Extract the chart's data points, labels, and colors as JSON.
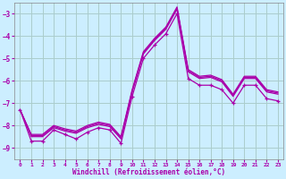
{
  "xlabel": "Windchill (Refroidissement éolien,°C)",
  "background_color": "#cceeff",
  "grid_color": "#aacccc",
  "line_color": "#aa00aa",
  "x_hours": [
    0,
    1,
    2,
    3,
    4,
    5,
    6,
    7,
    8,
    9,
    10,
    11,
    12,
    13,
    14,
    15,
    16,
    17,
    18,
    19,
    20,
    21,
    22,
    23
  ],
  "series_main": [
    -7.3,
    -8.7,
    -8.7,
    -8.2,
    -8.4,
    -8.6,
    -8.3,
    -8.1,
    -8.2,
    -8.8,
    -6.7,
    -5.0,
    -4.4,
    -3.9,
    -3.0,
    -5.9,
    -6.2,
    -6.2,
    -6.4,
    -7.0,
    -6.2,
    -6.2,
    -6.8,
    -6.9
  ],
  "series_a": [
    -7.3,
    -8.5,
    -8.5,
    -8.1,
    -8.25,
    -8.35,
    -8.1,
    -7.95,
    -8.05,
    -8.6,
    -6.5,
    -4.8,
    -4.2,
    -3.7,
    -2.8,
    -5.6,
    -5.9,
    -5.85,
    -6.05,
    -6.7,
    -5.9,
    -5.9,
    -6.5,
    -6.6
  ],
  "series_b": [
    -7.3,
    -8.45,
    -8.45,
    -8.05,
    -8.2,
    -8.3,
    -8.05,
    -7.9,
    -8.0,
    -8.55,
    -6.45,
    -4.75,
    -4.15,
    -3.65,
    -2.75,
    -5.55,
    -5.85,
    -5.8,
    -6.0,
    -6.65,
    -5.85,
    -5.85,
    -6.45,
    -6.55
  ],
  "series_c": [
    -7.3,
    -8.4,
    -8.4,
    -8.0,
    -8.15,
    -8.25,
    -8.0,
    -7.85,
    -7.95,
    -8.5,
    -6.4,
    -4.7,
    -4.1,
    -3.6,
    -2.7,
    -5.5,
    -5.8,
    -5.75,
    -5.95,
    -6.6,
    -5.8,
    -5.8,
    -6.4,
    -6.5
  ],
  "ylim": [
    -9.5,
    -2.5
  ],
  "xlim": [
    -0.5,
    23.5
  ],
  "yticks": [
    -9,
    -8,
    -7,
    -6,
    -5,
    -4,
    -3
  ],
  "xticks": [
    0,
    1,
    2,
    3,
    4,
    5,
    6,
    7,
    8,
    9,
    10,
    11,
    12,
    13,
    14,
    15,
    16,
    17,
    18,
    19,
    20,
    21,
    22,
    23
  ]
}
